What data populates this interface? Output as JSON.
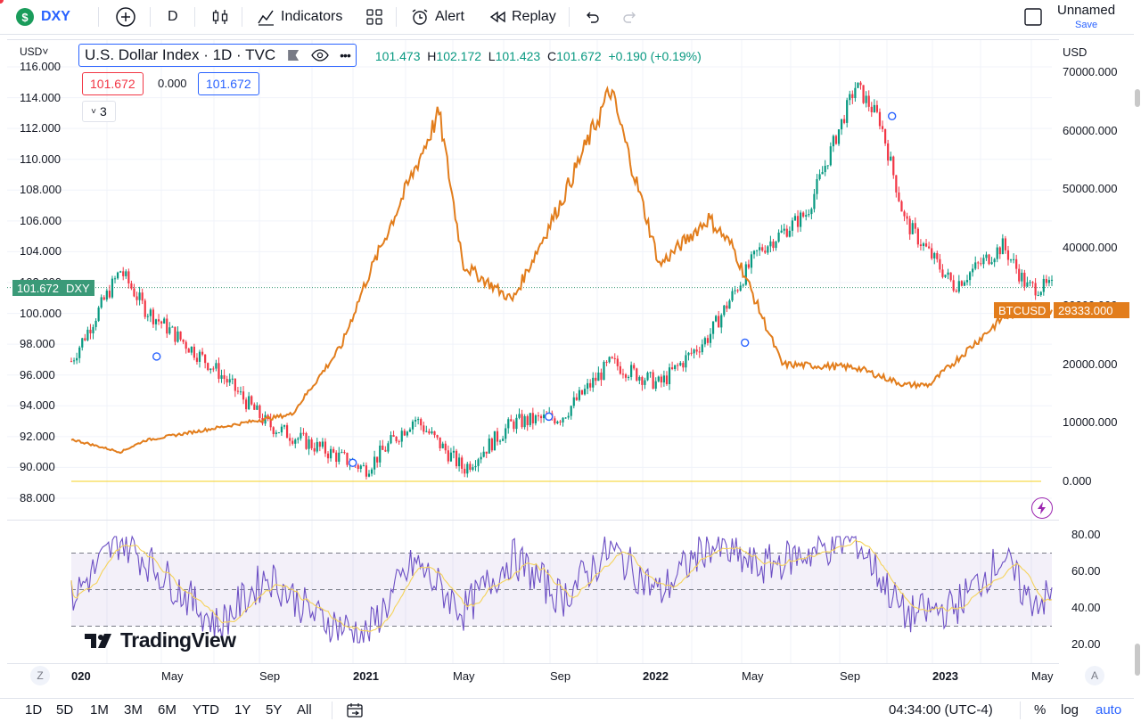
{
  "toolbar": {
    "symbol": "DXY",
    "symbol_logo": "$",
    "interval": "D",
    "indicators_label": "Indicators",
    "alert_label": "Alert",
    "replay_label": "Replay",
    "layout_name": "Unnamed",
    "save_label": "Save"
  },
  "legend": {
    "currency": "USD",
    "title": "U.S. Dollar Index · 1D · TVC",
    "open_label": "O",
    "open_value": "101.473",
    "high_label": "H",
    "high_value": "102.172",
    "low_label": "L",
    "low_value": "101.423",
    "close_label": "C",
    "close_value": "101.672",
    "change": "+0.190 (+0.19%)",
    "bid": "101.672",
    "spread": "0.000",
    "ask": "101.672",
    "collapsed_count": "3"
  },
  "right_axis": {
    "currency": "USD",
    "ticks": [
      "70000.000",
      "60000.000",
      "50000.000",
      "40000.000",
      "30000.000",
      "20000.000",
      "10000.000",
      "0.000"
    ]
  },
  "left_axis": {
    "ticks": [
      "116.000",
      "114.000",
      "112.000",
      "110.000",
      "108.000",
      "106.000",
      "104.000",
      "102.000",
      "100.000",
      "98.000",
      "96.000",
      "94.000",
      "92.000",
      "90.000",
      "88.000"
    ]
  },
  "price_tags": {
    "dxy_value": "101.672",
    "dxy_label": "DXY",
    "btc_label": "BTCUSD",
    "btc_value": "29333.000"
  },
  "rsi_axis": {
    "ticks": [
      "80.00",
      "60.00",
      "40.00",
      "20.00"
    ]
  },
  "x_axis": {
    "labels": [
      "020",
      "May",
      "Sep",
      "2021",
      "May",
      "Sep",
      "2022",
      "May",
      "Sep",
      "2023",
      "May"
    ]
  },
  "bottom": {
    "ranges": [
      "1D",
      "5D",
      "1M",
      "3M",
      "6M",
      "YTD",
      "1Y",
      "5Y",
      "All"
    ],
    "time": "04:34:00 (UTC-4)",
    "percent": "%",
    "log": "log",
    "auto": "auto",
    "z_btn": "Z",
    "a_btn": "A"
  },
  "watermark": "TradingView",
  "colors": {
    "accent": "#2962ff",
    "up": "#089981",
    "down": "#f23645",
    "btc_line": "#e27d1c",
    "rsi_line": "#7e57c2",
    "dxy_tag": "#3a9a78"
  },
  "chart_data": [
    {
      "type": "line",
      "title": "U.S. Dollar Index · 1D · TVC",
      "series": [
        {
          "name": "DXY",
          "x": [
            "Jan 2020",
            "Mar 2020",
            "Apr 2020",
            "Jul 2020",
            "Sep 2020",
            "Jan 2021",
            "Mar 2021",
            "May 2021",
            "Jul 2021",
            "Sep 2021",
            "Nov 2021",
            "Jan 2022",
            "Mar 2022",
            "May 2022",
            "Jul 2022",
            "Sep 2022",
            "Oct 2022",
            "Nov 2022",
            "Jan 2023",
            "Mar 2023",
            "Apr 2023"
          ],
          "values": [
            96.9,
            102.8,
            100.3,
            96.2,
            92.8,
            89.9,
            93.2,
            89.9,
            92.9,
            93.3,
            96.8,
            95.4,
            98.5,
            104.0,
            106.5,
            114.8,
            112.5,
            106.0,
            101.8,
            104.4,
            101.7
          ]
        },
        {
          "name": "BTCUSD",
          "x": [
            "Jan 2020",
            "Mar 2020",
            "Apr 2020",
            "Jul 2020",
            "Oct 2020",
            "Dec 2020",
            "Jan 2021",
            "Apr 2021",
            "May 2021",
            "Jul 2021",
            "Sep 2021",
            "Nov 2021",
            "Jan 2022",
            "Mar 2022",
            "Apr 2022",
            "Jun 2022",
            "Sep 2022",
            "Nov 2022",
            "Dec 2022",
            "Mar 2023",
            "Apr 2023"
          ],
          "values": [
            7200,
            5000,
            7000,
            9200,
            11500,
            23000,
            34000,
            63000,
            37000,
            31000,
            48000,
            67000,
            37000,
            45000,
            40000,
            20000,
            19500,
            16500,
            16500,
            28000,
            29333
          ]
        }
      ],
      "ylim_left": [
        88,
        116
      ],
      "ylim_right": [
        0,
        70000
      ]
    },
    {
      "type": "line",
      "title": "RSI",
      "series": [
        {
          "name": "RSI",
          "x": [
            "Jan 2020",
            "Mar 2020",
            "May 2020",
            "Jul 2020",
            "Sep 2020",
            "Nov 2020",
            "Jan 2021",
            "Mar 2021",
            "May 2021",
            "Jul 2021",
            "Sep 2021",
            "Nov 2021",
            "Jan 2022",
            "Mar 2022",
            "May 2022",
            "Jul 2022",
            "Sep 2022",
            "Nov 2022",
            "Jan 2023",
            "Mar 2023",
            "Apr 2023"
          ],
          "values": [
            45,
            78,
            55,
            30,
            58,
            35,
            25,
            65,
            38,
            68,
            45,
            72,
            48,
            75,
            62,
            70,
            78,
            36,
            40,
            68,
            45
          ]
        }
      ],
      "ylim": [
        20,
        80
      ],
      "bands": [
        30,
        50,
        70
      ]
    }
  ]
}
